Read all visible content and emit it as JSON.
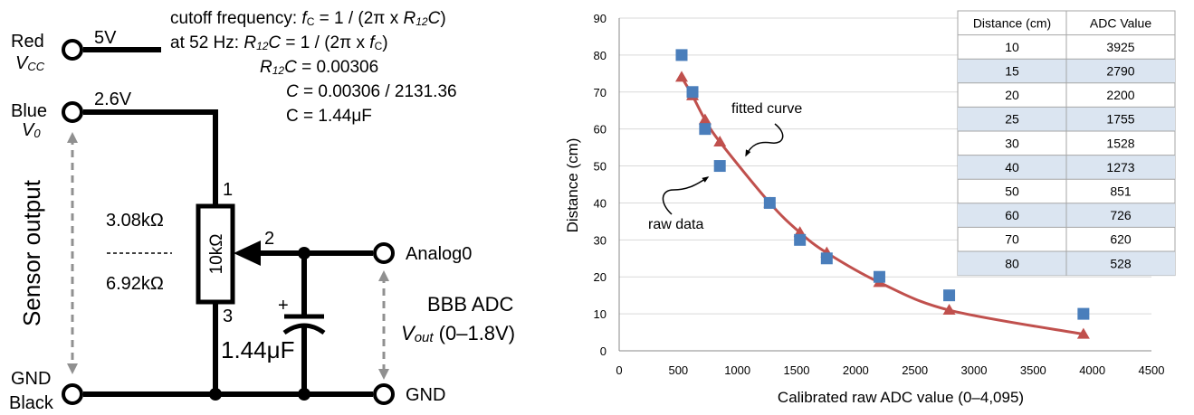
{
  "circuit": {
    "pins": {
      "red": "Red",
      "vcc": "V",
      "vcc_sub": "CC",
      "blue": "Blue",
      "v0": "V",
      "v0_sub": "0",
      "gnd": "GND",
      "black": "Black",
      "analog0": "Analog0",
      "gnd_right": "GND"
    },
    "voltages": {
      "v5": "5V",
      "v26": "2.6V"
    },
    "sensor_output": "Sensor output",
    "resistor": {
      "label": "10kΩ",
      "upper": "3.08kΩ",
      "lower": "6.92kΩ",
      "pin1": "1",
      "pin2": "2",
      "pin3": "3"
    },
    "capacitor": {
      "plus": "+",
      "label": "1.44μF"
    },
    "adc": {
      "title": "BBB ADC",
      "vout": "V",
      "vout_sub": "out",
      "range": " (0–1.8V)"
    },
    "equations": {
      "l1_a": "cutoff frequency: ",
      "l1_f": "f",
      "l1_fsub": "C",
      "l1_b": " = 1 / (2π x ",
      "l1_r": "R",
      "l1_rsub": "12",
      "l1_c": "C",
      "l1_end": ")",
      "l2_a": "at 52 Hz: ",
      "l2_r": "R",
      "l2_rsub": "12",
      "l2_c": "C",
      "l2_b": " = 1 / (2π x ",
      "l2_f": "f",
      "l2_fsub": "C",
      "l2_end": ")",
      "l3_r": "R",
      "l3_rsub": "12",
      "l3_c": "C",
      "l3_b": " = 0.00306",
      "l4_c": "C",
      "l4_b": " = 0.00306 / 2131.36",
      "l5": "C = 1.44μF"
    }
  },
  "chart_data": {
    "type": "scatter",
    "xlabel": "Calibrated raw ADC value (0–4,095)",
    "ylabel": "Distance (cm)",
    "xlim": [
      0,
      4500
    ],
    "ylim": [
      0,
      90
    ],
    "x_ticks": [
      "0",
      "500",
      "1000",
      "1500",
      "2000",
      "2500",
      "3000",
      "3500",
      "4000",
      "4500"
    ],
    "y_ticks": [
      "0",
      "10",
      "20",
      "30",
      "40",
      "50",
      "60",
      "70",
      "80",
      "90"
    ],
    "grid": "horizontal",
    "colors": {
      "raw": "#4a7ebb",
      "fitted": "#c0504d",
      "table_band": "#dbe5f1"
    },
    "series": [
      {
        "name": "raw data",
        "marker": "square",
        "points": [
          [
            528,
            80
          ],
          [
            620,
            70
          ],
          [
            726,
            60
          ],
          [
            851,
            50
          ],
          [
            1273,
            40
          ],
          [
            1528,
            30
          ],
          [
            1755,
            25
          ],
          [
            2200,
            20
          ],
          [
            2790,
            15
          ],
          [
            3925,
            10
          ]
        ]
      },
      {
        "name": "fitted curve",
        "marker": "triangle",
        "points": [
          [
            528,
            74
          ],
          [
            620,
            69
          ],
          [
            726,
            62.5
          ],
          [
            851,
            56.5
          ],
          [
            1273,
            40
          ],
          [
            1528,
            32
          ],
          [
            1755,
            26.5
          ],
          [
            2200,
            18.5
          ],
          [
            2790,
            11
          ],
          [
            3925,
            4.5
          ]
        ]
      }
    ],
    "annotations": {
      "fitted": "fitted curve",
      "raw": "raw data"
    },
    "table": {
      "headers": [
        "Distance (cm)",
        "ADC Value"
      ],
      "rows": [
        [
          "10",
          "3925"
        ],
        [
          "15",
          "2790"
        ],
        [
          "20",
          "2200"
        ],
        [
          "25",
          "1755"
        ],
        [
          "30",
          "1528"
        ],
        [
          "40",
          "1273"
        ],
        [
          "50",
          "851"
        ],
        [
          "60",
          "726"
        ],
        [
          "70",
          "620"
        ],
        [
          "80",
          "528"
        ]
      ]
    }
  }
}
